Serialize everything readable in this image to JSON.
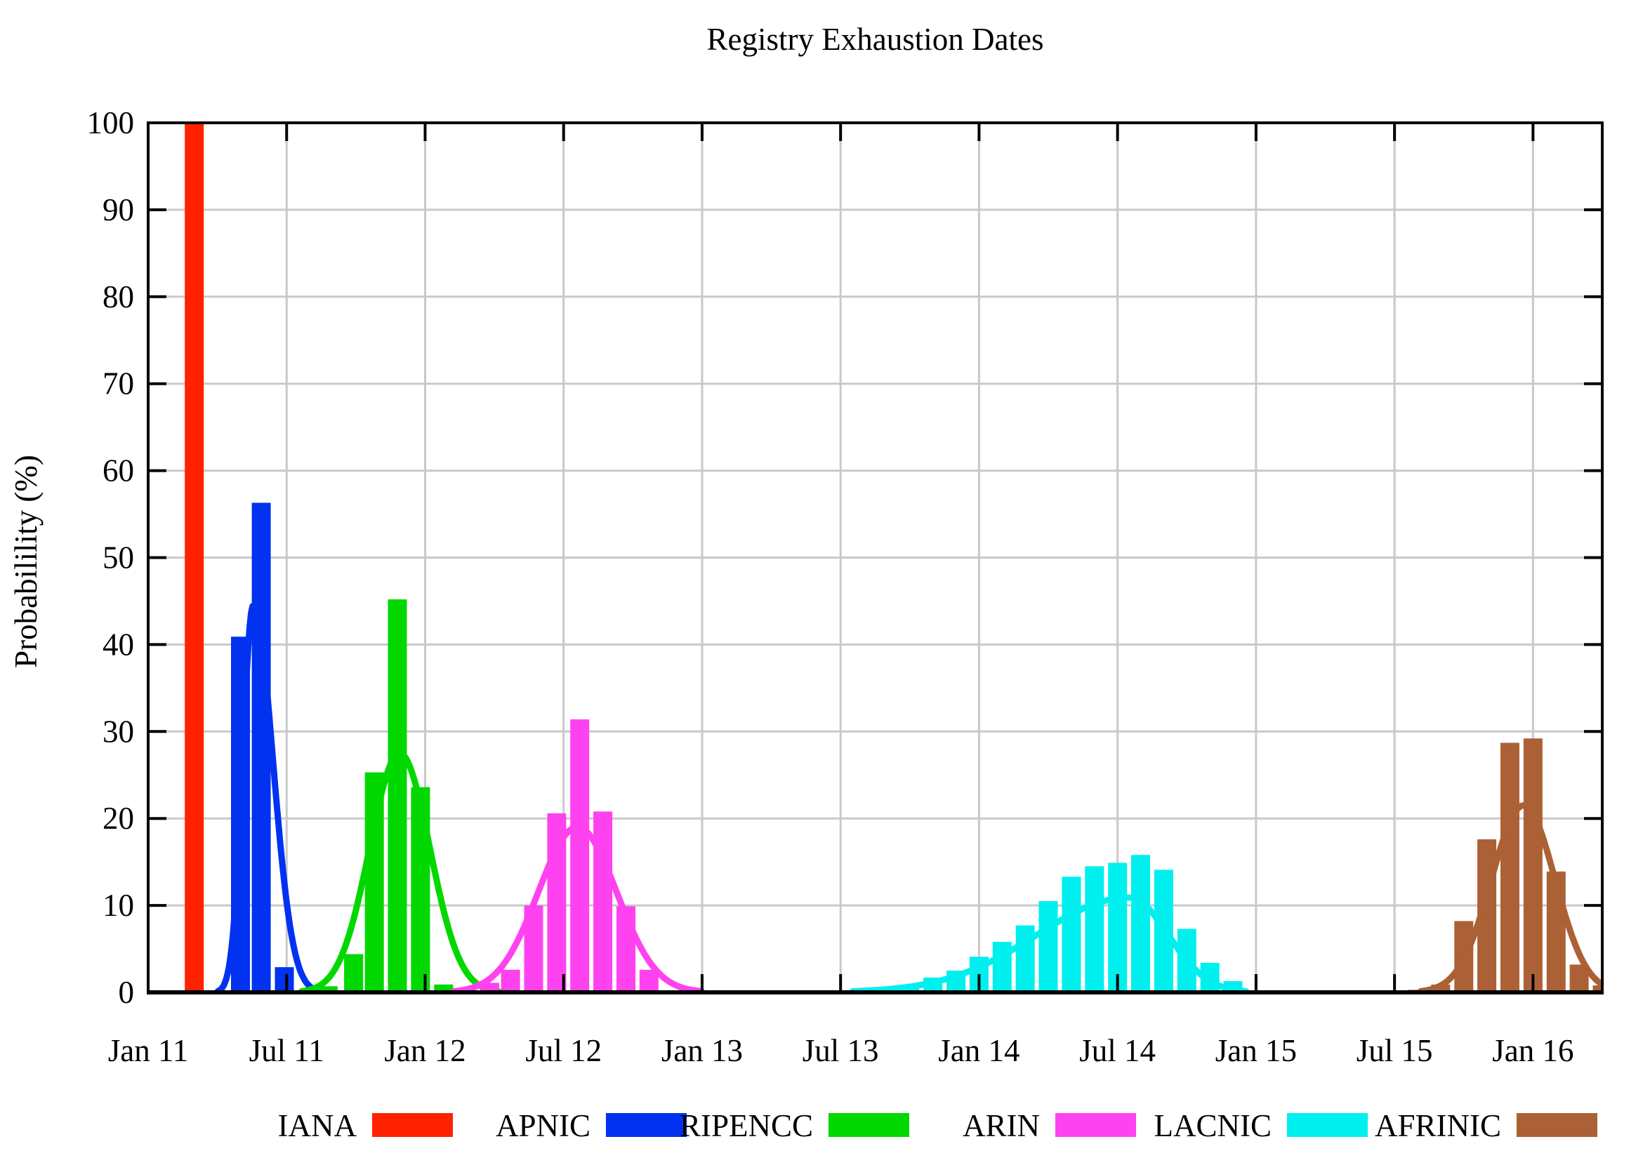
{
  "chart_data": {
    "type": "bar",
    "title": "Registry Exhaustion Dates",
    "ylabel": "Probabilility (%)",
    "x_unit": "months since Jan 2011",
    "x_range_months": [
      0,
      63
    ],
    "x_ticks": [
      {
        "label": "Jan 11",
        "month": 0
      },
      {
        "label": "Jul 11",
        "month": 6
      },
      {
        "label": "Jan 12",
        "month": 12
      },
      {
        "label": "Jul 12",
        "month": 18
      },
      {
        "label": "Jan 13",
        "month": 24
      },
      {
        "label": "Jul 13",
        "month": 30
      },
      {
        "label": "Jan 14",
        "month": 36
      },
      {
        "label": "Jul 14",
        "month": 42
      },
      {
        "label": "Jan 15",
        "month": 48
      },
      {
        "label": "Jul 15",
        "month": 54
      },
      {
        "label": "Jan 16",
        "month": 60
      }
    ],
    "y_ticks": [
      0,
      10,
      20,
      30,
      40,
      50,
      60,
      70,
      80,
      90,
      100
    ],
    "ylim": [
      0,
      100
    ],
    "grid": true,
    "legend_position": "bottom",
    "grid_color": "#c9c9c9",
    "series": [
      {
        "name": "IANA",
        "color": "#ff2200",
        "bars": {
          "months": [
            2.0
          ],
          "values": [
            100
          ]
        },
        "curve": null
      },
      {
        "name": "APNIC",
        "color": "#0032f0",
        "bars": {
          "months": [
            4.0,
            4.9,
            5.9
          ],
          "values": [
            40.9,
            56.3,
            2.9
          ]
        },
        "curve": {
          "peak": 44.5,
          "mu": 4.55,
          "sigma_left": 0.45,
          "sigma_right": 0.85
        }
      },
      {
        "name": "RIPENCC",
        "color": "#00d800",
        "bars": {
          "months": [
            7.8,
            8.9,
            9.8,
            10.8,
            11.8,
            12.8
          ],
          "values": [
            0.7,
            4.4,
            25.3,
            45.2,
            23.6,
            0.9
          ]
        },
        "curve": {
          "peak": 27.5,
          "mu": 10.9,
          "sigma_left": 1.3,
          "sigma_right": 1.3
        }
      },
      {
        "name": "ARIN",
        "color": "#ff42f0",
        "bars": {
          "months": [
            14.8,
            15.7,
            16.7,
            17.7,
            18.7,
            19.7,
            20.7,
            21.7
          ],
          "values": [
            1.1,
            2.6,
            10.0,
            20.6,
            31.4,
            20.8,
            9.9,
            2.6
          ]
        },
        "curve": {
          "peak": 19.0,
          "mu": 18.6,
          "sigma_left": 1.7,
          "sigma_right": 1.7
        }
      },
      {
        "name": "LACNIC",
        "color": "#00efef",
        "bars": {
          "months": [
            33,
            34,
            35,
            36,
            37,
            38,
            39,
            40,
            41,
            42,
            43,
            44,
            45,
            46,
            47
          ],
          "values": [
            0.6,
            1.7,
            2.5,
            4.1,
            5.8,
            7.7,
            10.5,
            13.3,
            14.5,
            14.9,
            15.8,
            14.1,
            7.3,
            3.4,
            1.3
          ]
        },
        "curve": {
          "peak": 10.9,
          "mu": 42.5,
          "sigma_left": 4.0,
          "sigma_right": 1.7
        }
      },
      {
        "name": "AFRINIC",
        "color": "#ab6135",
        "bars": {
          "months": [
            55,
            56,
            57,
            58,
            59,
            60,
            61,
            62,
            63
          ],
          "values": [
            0.3,
            0.9,
            8.2,
            17.6,
            28.7,
            29.2,
            13.9,
            3.2,
            0.8
          ]
        },
        "curve": {
          "peak": 21.5,
          "mu": 59.6,
          "sigma_left": 1.4,
          "sigma_right": 1.35
        }
      }
    ]
  }
}
